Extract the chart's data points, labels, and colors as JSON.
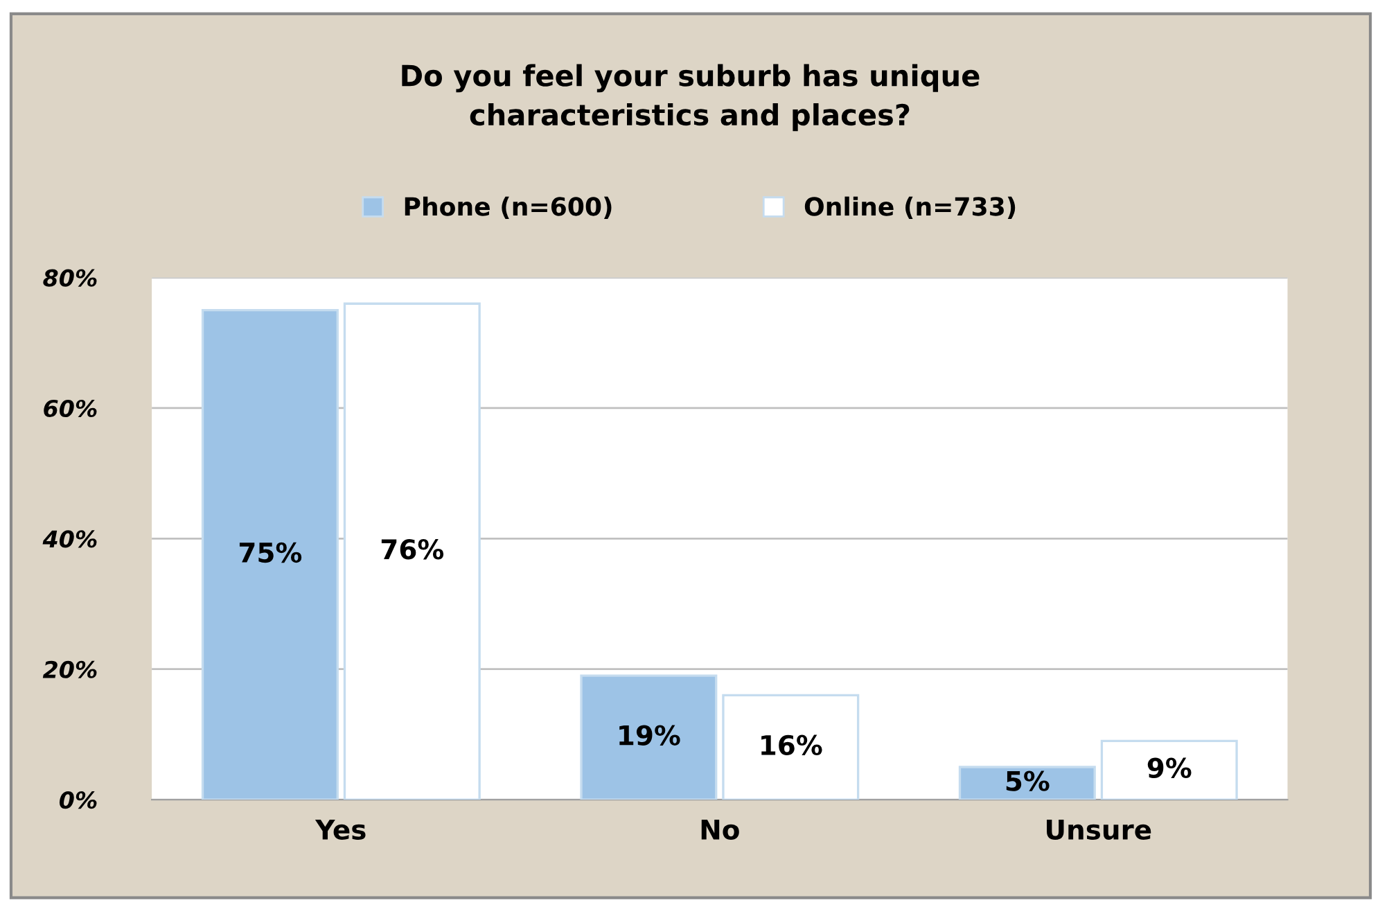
{
  "chart_data": {
    "type": "bar",
    "title": "Do you feel your suburb has unique\ncharacteristics and places?",
    "categories": [
      "Yes",
      "No",
      "Unsure"
    ],
    "series": [
      {
        "name": "Phone (n=600)",
        "color": "#9dc3e6",
        "values": [
          75,
          19,
          5
        ],
        "value_labels": [
          "75%",
          "19%",
          "5%"
        ]
      },
      {
        "name": "Online (n=733)",
        "color": "#ffffff",
        "values": [
          76,
          16,
          9
        ],
        "value_labels": [
          "76%",
          "16%",
          "9%"
        ]
      }
    ],
    "ylim": [
      0,
      80
    ],
    "yticks": [
      {
        "value": 0,
        "label": "0%"
      },
      {
        "value": 20,
        "label": "20%"
      },
      {
        "value": 40,
        "label": "40%"
      },
      {
        "value": 60,
        "label": "60%"
      },
      {
        "value": 80,
        "label": "80%"
      }
    ],
    "grid": "y",
    "legend": "top"
  }
}
